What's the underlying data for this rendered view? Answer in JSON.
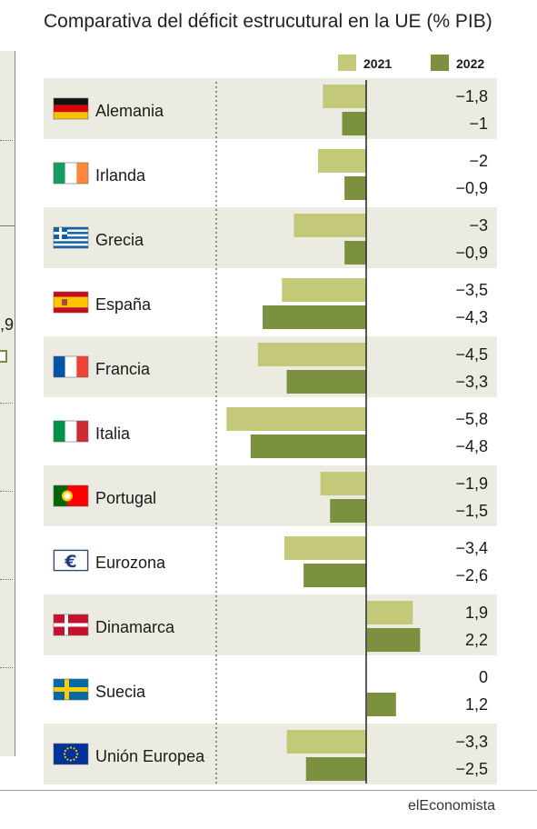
{
  "title": "Comparativa del déficit estrucutural en la UE (% PIB)",
  "footer": "elEconomista",
  "left_fragment": ",9",
  "colors": {
    "c2021": "#c4c97a",
    "c2022": "#7c9140",
    "band": "#ecebe2"
  },
  "chart_data": {
    "type": "bar",
    "orientation": "horizontal",
    "categories": [
      "Alemania",
      "Irlanda",
      "Grecia",
      "España",
      "Francia",
      "Italia",
      "Portugal",
      "Eurozona",
      "Dinamarca",
      "Suecia",
      "Unión Europea"
    ],
    "flags": [
      "germany",
      "ireland",
      "greece",
      "spain",
      "france",
      "italy",
      "portugal",
      "euro",
      "denmark",
      "sweden",
      "eu"
    ],
    "series": [
      {
        "name": "2021",
        "values": [
          -1.8,
          -2,
          -3,
          -3.5,
          -4.5,
          -5.8,
          -1.9,
          -3.4,
          1.9,
          0,
          -3.3
        ],
        "labels": [
          "−1,8",
          "−2",
          "−3",
          "−3,5",
          "−4,5",
          "−5,8",
          "−1,9",
          "−3,4",
          "1,9",
          "0",
          "−3,3"
        ]
      },
      {
        "name": "2022",
        "values": [
          -1,
          -0.9,
          -0.9,
          -4.3,
          -3.3,
          -4.8,
          -1.5,
          -2.6,
          2.2,
          1.2,
          -2.5
        ],
        "labels": [
          "−1",
          "−0,9",
          "−0,9",
          "−4,3",
          "−3,3",
          "−4,8",
          "−1,5",
          "−2,6",
          "2,2",
          "1,2",
          "−2,5"
        ]
      }
    ],
    "xlim": [
      -6,
      2.6
    ],
    "legend": "top-right",
    "grid": false
  }
}
